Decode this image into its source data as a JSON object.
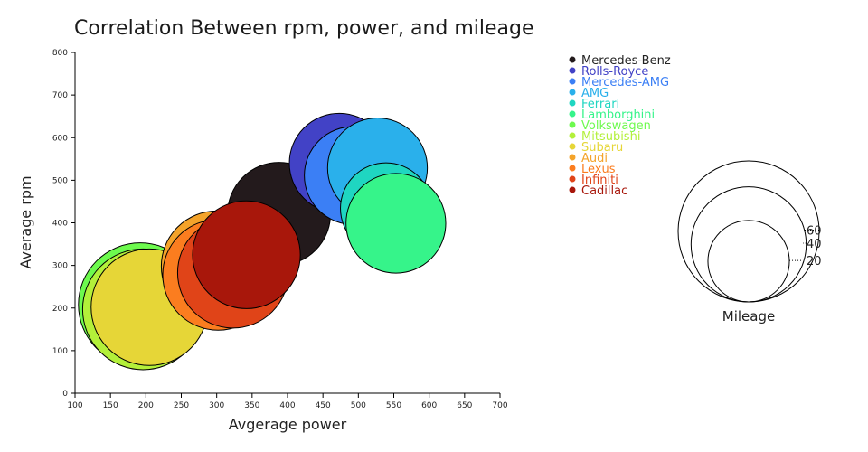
{
  "chart_data": {
    "type": "scatter",
    "subtype": "bubble",
    "title": "Correlation Between rpm, power, and mileage",
    "xlabel": "Avgerage power",
    "ylabel": "Average rpm",
    "xlim": [
      100,
      700
    ],
    "ylim": [
      0,
      800
    ],
    "xticks": [
      100,
      150,
      200,
      250,
      300,
      350,
      400,
      450,
      500,
      550,
      600,
      650,
      700
    ],
    "yticks": [
      0,
      100,
      200,
      300,
      400,
      500,
      600,
      700,
      800
    ],
    "grid": false,
    "legend_position": "top-right",
    "size_legend": {
      "title": "Mileage",
      "values": [
        20,
        40,
        60
      ]
    },
    "series": [
      {
        "name": "Mercedes-Benz",
        "color": "#231a1c",
        "points": [
          {
            "x": 388,
            "y": 421,
            "size": 32
          }
        ]
      },
      {
        "name": "Rolls-Royce",
        "color": "#4242c6",
        "points": [
          {
            "x": 473,
            "y": 540,
            "size": 30
          }
        ]
      },
      {
        "name": "Mercedes-AMG",
        "color": "#3b7ff5",
        "points": [
          {
            "x": 493,
            "y": 511,
            "size": 29
          }
        ]
      },
      {
        "name": "AMG",
        "color": "#2ab0eb",
        "points": [
          {
            "x": 527,
            "y": 529,
            "size": 30
          }
        ]
      },
      {
        "name": "Ferrari",
        "color": "#1fd6c1",
        "points": [
          {
            "x": 539,
            "y": 434,
            "size": 25
          }
        ]
      },
      {
        "name": "Lamborghini",
        "color": "#36f48a",
        "points": [
          {
            "x": 553,
            "y": 399,
            "size": 30
          }
        ]
      },
      {
        "name": "Volkswagen",
        "color": "#6dfa4e",
        "points": [
          {
            "x": 192,
            "y": 208,
            "size": 46
          }
        ]
      },
      {
        "name": "Mitsubishi",
        "color": "#b3f03a",
        "points": [
          {
            "x": 196,
            "y": 197,
            "size": 44
          }
        ]
      },
      {
        "name": "Subaru",
        "color": "#e6d637",
        "points": [
          {
            "x": 205,
            "y": 202,
            "size": 41
          }
        ]
      },
      {
        "name": "Audi",
        "color": "#f4a32a",
        "points": [
          {
            "x": 300,
            "y": 298,
            "size": 37
          }
        ]
      },
      {
        "name": "Lexus",
        "color": "#fb7d1f",
        "points": [
          {
            "x": 302,
            "y": 278,
            "size": 37
          }
        ]
      },
      {
        "name": "Infiniti",
        "color": "#e04418",
        "points": [
          {
            "x": 323,
            "y": 283,
            "size": 37
          }
        ]
      },
      {
        "name": "Cadillac",
        "color": "#a8170b",
        "points": [
          {
            "x": 342,
            "y": 325,
            "size": 35
          }
        ]
      }
    ]
  }
}
